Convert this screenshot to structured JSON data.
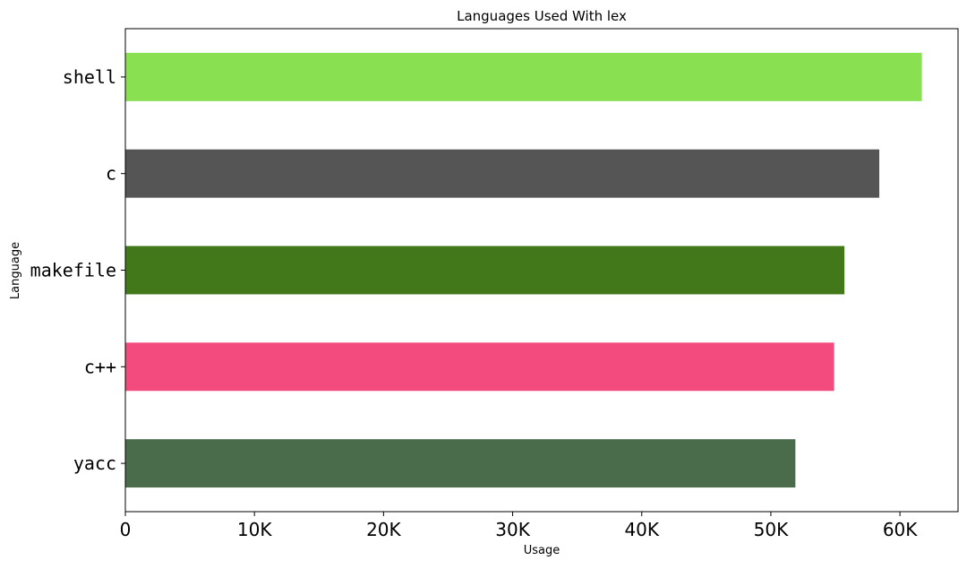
{
  "chart_data": {
    "type": "bar",
    "orientation": "horizontal",
    "title": "Languages Used With lex",
    "xlabel": "Usage",
    "ylabel": "Language",
    "categories": [
      "shell",
      "c",
      "makefile",
      "c++",
      "yacc"
    ],
    "values": [
      61700,
      58400,
      55700,
      54900,
      51900
    ],
    "colors": [
      "#89e051",
      "#555555",
      "#427819",
      "#f34b7d",
      "#4b6c4b"
    ],
    "xlim": [
      0,
      64500
    ],
    "xticks": [
      0,
      10000,
      20000,
      30000,
      40000,
      50000,
      60000
    ],
    "xtick_labels": [
      "0",
      "10K",
      "20K",
      "30K",
      "40K",
      "50K",
      "60K"
    ],
    "grid": false,
    "legend": "none"
  }
}
